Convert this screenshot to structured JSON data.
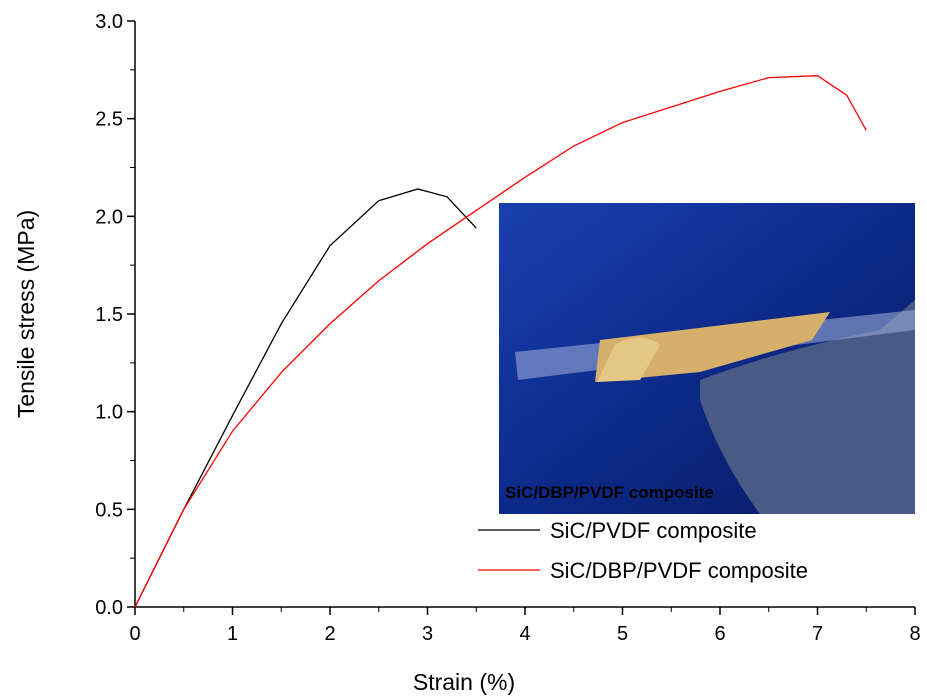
{
  "chart_data": {
    "type": "line",
    "xlabel": "Strain (%)",
    "ylabel": "Tensile stress (MPa)",
    "xlim": [
      0,
      8
    ],
    "ylim": [
      0,
      3
    ],
    "xticks": [
      0,
      1,
      2,
      3,
      4,
      5,
      6,
      7,
      8
    ],
    "yticks": [
      {
        "value": 0,
        "label": "0.0"
      },
      0.5,
      {
        "value": 1,
        "label": "1.0"
      },
      1.5,
      {
        "value": 2,
        "label": "2.0"
      },
      2.5,
      {
        "value": 3,
        "label": "3.0"
      }
    ],
    "xminorticks": [
      0.5,
      1.5,
      2.5,
      3.5,
      4.5,
      5.5,
      6.5,
      7.5
    ],
    "yminorticks": [
      0.25,
      0.75,
      1.25,
      1.75,
      2.25,
      2.75
    ],
    "legend": "lower right",
    "inset_label": "SiC/DBP/PVDF composite",
    "series": [
      {
        "name": "SiC/PVDF composite",
        "color": "#000000",
        "x": [
          0,
          0.5,
          1,
          1.5,
          2,
          2.5,
          2.9,
          3.2,
          3.5
        ],
        "values": [
          0,
          0.5,
          0.98,
          1.45,
          1.85,
          2.08,
          2.14,
          2.1,
          1.94
        ]
      },
      {
        "name": "SiC/DBP/PVDF composite",
        "color": "#ff0000",
        "x": [
          0,
          0.5,
          1,
          1.5,
          2,
          2.5,
          3,
          3.5,
          4,
          4.5,
          5,
          5.5,
          6,
          6.5,
          7,
          7.3,
          7.5
        ],
        "values": [
          0,
          0.5,
          0.9,
          1.2,
          1.45,
          1.67,
          1.86,
          2.03,
          2.2,
          2.36,
          2.48,
          2.56,
          2.64,
          2.71,
          2.72,
          2.62,
          2.44
        ]
      }
    ]
  }
}
